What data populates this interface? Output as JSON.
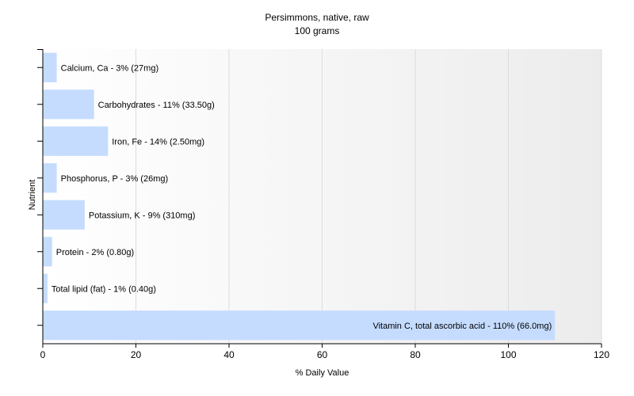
{
  "chart_data": {
    "type": "bar",
    "orientation": "horizontal",
    "title": "Persimmons, native, raw",
    "subtitle": "100 grams",
    "xlabel": "% Daily Value",
    "ylabel": "Nutrient",
    "xlim": [
      0,
      120
    ],
    "xticks": [
      0,
      20,
      40,
      60,
      80,
      100,
      120
    ],
    "grid": true,
    "bar_color": "#c5dcff",
    "categories": [
      "Calcium, Ca",
      "Carbohydrates",
      "Iron, Fe",
      "Phosphorus, P",
      "Potassium, K",
      "Protein",
      "Total lipid (fat)",
      "Vitamin C, total ascorbic acid"
    ],
    "values": [
      3,
      11,
      14,
      3,
      9,
      2,
      1,
      110
    ],
    "labels": [
      "Calcium, Ca - 3% (27mg)",
      "Carbohydrates - 11% (33.50g)",
      "Iron, Fe - 14% (2.50mg)",
      "Phosphorus, P - 3% (26mg)",
      "Potassium, K - 9% (310mg)",
      "Protein - 2% (0.80g)",
      "Total lipid (fat) - 1% (0.40g)",
      "Vitamin C, total ascorbic acid - 110% (66.0mg)"
    ]
  }
}
